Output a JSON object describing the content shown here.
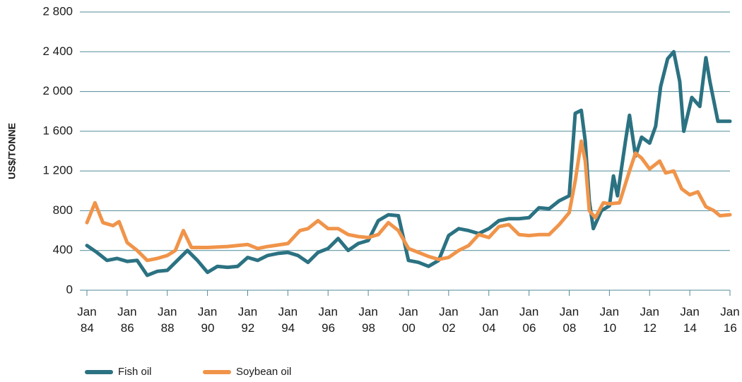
{
  "chart_data": {
    "type": "line",
    "y_label": "US$/TONNE",
    "ylim": [
      0,
      2800
    ],
    "yticks": [
      0,
      400,
      {
        "value": 800,
        "label": "800"
      },
      {
        "value": 1200,
        "label": "1 200"
      },
      {
        "value": 1600,
        "label": "1 600"
      },
      {
        "value": 2000,
        "label": "2 000"
      },
      {
        "value": 2400,
        "label": "2 400"
      },
      {
        "value": 2800,
        "label": "2 800"
      }
    ],
    "xlim": [
      1984,
      2016
    ],
    "xticks": [
      {
        "value": 1984,
        "label": "Jan 84"
      },
      {
        "value": 1986,
        "label": "Jan 86"
      },
      {
        "value": 1988,
        "label": "Jan 88"
      },
      {
        "value": 1990,
        "label": "Jan 90"
      },
      {
        "value": 1992,
        "label": "Jan 92"
      },
      {
        "value": 1994,
        "label": "Jan 94"
      },
      {
        "value": 1996,
        "label": "Jan 96"
      },
      {
        "value": 1998,
        "label": "Jan 98"
      },
      {
        "value": 2000,
        "label": "Jan 00"
      },
      {
        "value": 2002,
        "label": "Jan 02"
      },
      {
        "value": 2004,
        "label": "Jan 04"
      },
      {
        "value": 2006,
        "label": "Jan 06"
      },
      {
        "value": 2008,
        "label": "Jan 08"
      },
      {
        "value": 2010,
        "label": "Jan 10"
      },
      {
        "value": 2012,
        "label": "Jan 12"
      },
      {
        "value": 2014,
        "label": "Jan 14"
      },
      {
        "value": 2016,
        "label": "Jan 16"
      }
    ],
    "grid": true,
    "legend": "bottom",
    "series": [
      {
        "name": "Fish oil",
        "color": "#2b7282",
        "x": [
          1984.0,
          1984.5,
          1985.0,
          1985.5,
          1986.0,
          1986.5,
          1987.0,
          1987.5,
          1988.0,
          1988.5,
          1989.0,
          1989.5,
          1990.0,
          1990.5,
          1991.0,
          1991.5,
          1992.0,
          1992.5,
          1993.0,
          1993.5,
          1994.0,
          1994.5,
          1995.0,
          1995.5,
          1996.0,
          1996.5,
          1997.0,
          1997.5,
          1998.0,
          1998.5,
          1999.0,
          1999.5,
          2000.0,
          2000.5,
          2001.0,
          2001.5,
          2002.0,
          2002.5,
          2003.0,
          2003.5,
          2004.0,
          2004.5,
          2005.0,
          2005.5,
          2006.0,
          2006.5,
          2007.0,
          2007.5,
          2008.0,
          2008.3,
          2008.6,
          2008.8,
          2009.0,
          2009.2,
          2009.6,
          2010.0,
          2010.2,
          2010.4,
          2010.8,
          2011.0,
          2011.3,
          2011.6,
          2012.0,
          2012.3,
          2012.55,
          2012.9,
          2013.2,
          2013.5,
          2013.7,
          2014.1,
          2014.5,
          2014.8,
          2015.0,
          2015.4,
          2016.0
        ],
        "values": [
          450,
          380,
          300,
          320,
          290,
          300,
          150,
          190,
          200,
          300,
          400,
          300,
          180,
          240,
          230,
          240,
          330,
          300,
          350,
          370,
          380,
          350,
          280,
          380,
          420,
          520,
          400,
          470,
          500,
          700,
          760,
          750,
          300,
          280,
          240,
          300,
          550,
          620,
          600,
          570,
          620,
          700,
          720,
          720,
          730,
          830,
          820,
          900,
          950,
          1780,
          1810,
          1500,
          900,
          620,
          800,
          850,
          1150,
          950,
          1500,
          1760,
          1350,
          1540,
          1480,
          1650,
          2050,
          2330,
          2400,
          2100,
          1600,
          1940,
          1850,
          2340,
          2100,
          1700,
          1700
        ]
      },
      {
        "name": "Soybean oil",
        "color": "#f0944a",
        "x": [
          1984.0,
          1984.4,
          1984.8,
          1985.3,
          1985.6,
          1986.0,
          1986.5,
          1987.0,
          1987.5,
          1988.0,
          1988.4,
          1988.8,
          1989.2,
          1990.0,
          1991.0,
          1992.0,
          1992.5,
          1993.0,
          1994.0,
          1994.6,
          1995.0,
          1995.5,
          1996.0,
          1996.5,
          1997.0,
          1997.5,
          1998.0,
          1998.5,
          1999.0,
          1999.5,
          2000.0,
          2000.5,
          2001.0,
          2001.5,
          2002.0,
          2002.5,
          2003.0,
          2003.5,
          2004.0,
          2004.5,
          2005.0,
          2005.5,
          2006.0,
          2006.5,
          2007.0,
          2007.5,
          2008.0,
          2008.3,
          2008.6,
          2008.8,
          2009.0,
          2009.3,
          2009.7,
          2010.0,
          2010.5,
          2011.0,
          2011.3,
          2011.6,
          2012.0,
          2012.5,
          2012.8,
          2013.2,
          2013.6,
          2014.0,
          2014.4,
          2014.8,
          2015.2,
          2015.5,
          2016.0
        ],
        "values": [
          680,
          880,
          680,
          650,
          690,
          480,
          400,
          300,
          320,
          350,
          400,
          600,
          430,
          430,
          440,
          460,
          420,
          440,
          470,
          600,
          620,
          700,
          620,
          620,
          560,
          540,
          530,
          560,
          680,
          600,
          420,
          380,
          340,
          310,
          330,
          400,
          450,
          560,
          530,
          640,
          660,
          560,
          550,
          560,
          560,
          660,
          780,
          1100,
          1500,
          1300,
          800,
          730,
          880,
          870,
          880,
          1200,
          1380,
          1330,
          1220,
          1300,
          1180,
          1200,
          1020,
          960,
          990,
          840,
          800,
          750,
          760
        ]
      }
    ]
  }
}
